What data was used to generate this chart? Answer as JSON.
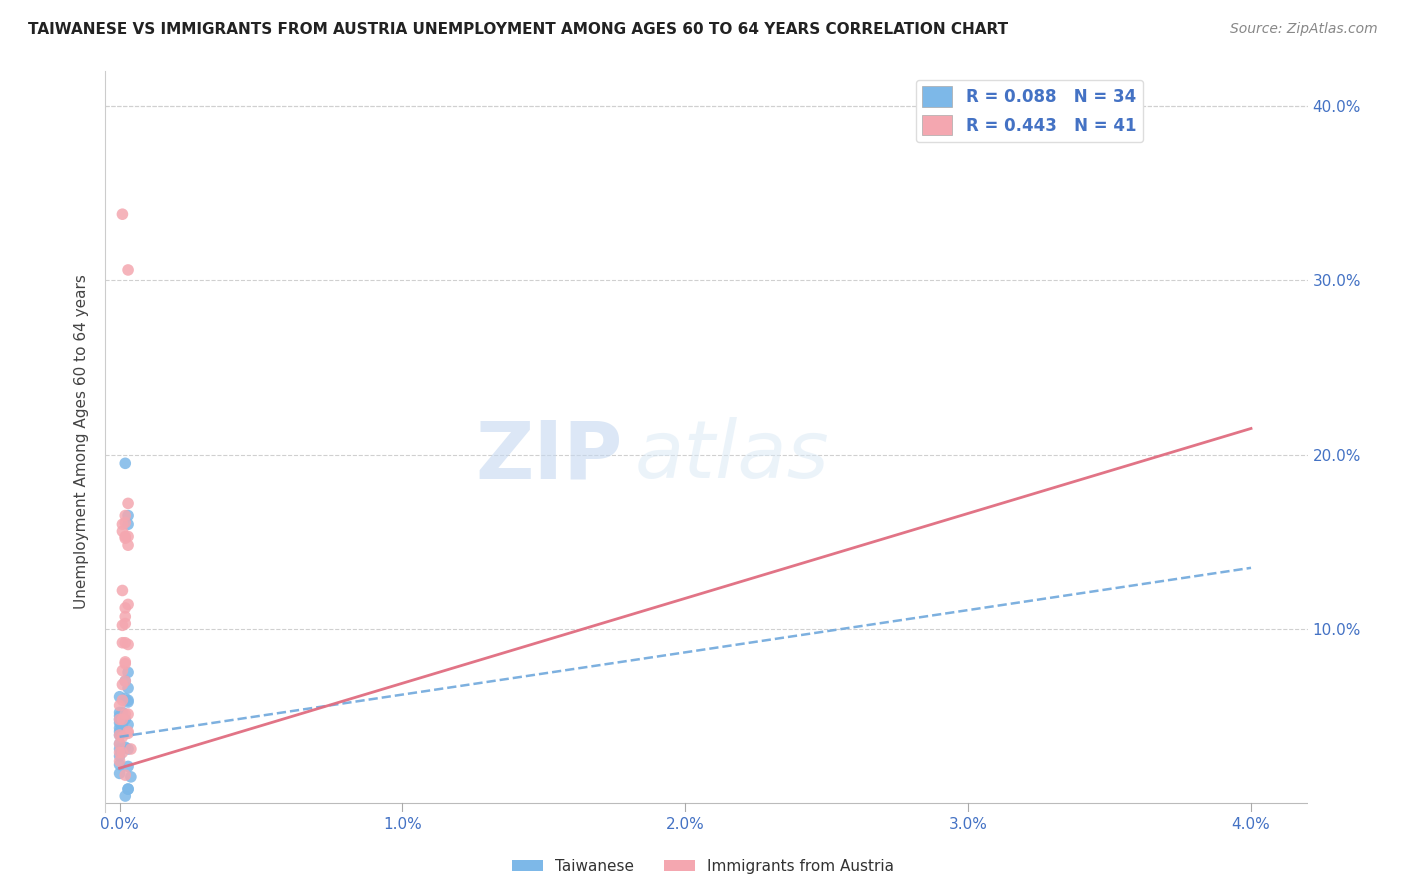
{
  "title": "TAIWANESE VS IMMIGRANTS FROM AUSTRIA UNEMPLOYMENT AMONG AGES 60 TO 64 YEARS CORRELATION CHART",
  "source": "Source: ZipAtlas.com",
  "ylabel_left": "Unemployment Among Ages 60 to 64 years",
  "x_ticks": [
    0.0,
    0.01,
    0.02,
    0.03,
    0.04
  ],
  "x_tick_labels": [
    "0.0%",
    "1.0%",
    "2.0%",
    "3.0%",
    "4.0%"
  ],
  "y_ticks_right": [
    0.1,
    0.2,
    0.3,
    0.4
  ],
  "y_tick_labels_right": [
    "10.0%",
    "20.0%",
    "30.0%",
    "40.0%"
  ],
  "ylim": [
    -0.005,
    0.42
  ],
  "xlim": [
    -0.0005,
    0.042
  ],
  "taiwanese_color": "#6fa8dc",
  "austrian_color": "#e06c75",
  "taiwanese_scatter_color": "#7db8e8",
  "austrian_scatter_color": "#f4a7b0",
  "watermark_zip": "ZIP",
  "watermark_atlas": "atlas",
  "background_color": "#ffffff",
  "grid_color": "#d0d0d0",
  "axis_label_color": "#4472c4",
  "title_color": "#222222",
  "tw_line_color": "#6fa8dc",
  "au_line_color": "#e06c80",
  "taiwanese_scatter": [
    [
      0.0,
      0.043
    ],
    [
      0.0,
      0.052
    ],
    [
      0.0,
      0.046
    ],
    [
      0.0,
      0.039
    ],
    [
      0.0,
      0.034
    ],
    [
      0.0,
      0.031
    ],
    [
      0.0,
      0.027
    ],
    [
      0.0,
      0.061
    ],
    [
      0.0,
      0.022
    ],
    [
      0.0,
      0.017
    ],
    [
      0.0,
      0.05
    ],
    [
      0.0,
      0.048
    ],
    [
      0.0,
      0.041
    ],
    [
      0.0001,
      0.046
    ],
    [
      0.0001,
      0.052
    ],
    [
      0.0001,
      0.045
    ],
    [
      0.0002,
      0.06
    ],
    [
      0.0002,
      0.07
    ],
    [
      0.0002,
      0.032
    ],
    [
      0.0002,
      0.048
    ],
    [
      0.0002,
      0.004
    ],
    [
      0.0002,
      0.195
    ],
    [
      0.0003,
      0.165
    ],
    [
      0.0003,
      0.075
    ],
    [
      0.0003,
      0.059
    ],
    [
      0.0003,
      0.16
    ],
    [
      0.0003,
      0.045
    ],
    [
      0.0003,
      0.008
    ],
    [
      0.0003,
      0.031
    ],
    [
      0.0003,
      0.058
    ],
    [
      0.0003,
      0.021
    ],
    [
      0.0003,
      0.008
    ],
    [
      0.0003,
      0.066
    ],
    [
      0.0004,
      0.015
    ]
  ],
  "austrian_scatter": [
    [
      0.0,
      0.056
    ],
    [
      0.0,
      0.048
    ],
    [
      0.0,
      0.039
    ],
    [
      0.0,
      0.034
    ],
    [
      0.0,
      0.029
    ],
    [
      0.0,
      0.024
    ],
    [
      0.0001,
      0.076
    ],
    [
      0.0001,
      0.068
    ],
    [
      0.0001,
      0.059
    ],
    [
      0.0001,
      0.048
    ],
    [
      0.0001,
      0.038
    ],
    [
      0.0001,
      0.029
    ],
    [
      0.0001,
      0.338
    ],
    [
      0.0001,
      0.16
    ],
    [
      0.0001,
      0.156
    ],
    [
      0.0001,
      0.122
    ],
    [
      0.0001,
      0.102
    ],
    [
      0.0001,
      0.092
    ],
    [
      0.0002,
      0.08
    ],
    [
      0.0002,
      0.07
    ],
    [
      0.0002,
      0.016
    ],
    [
      0.0002,
      0.153
    ],
    [
      0.0002,
      0.112
    ],
    [
      0.0002,
      0.107
    ],
    [
      0.0002,
      0.092
    ],
    [
      0.0002,
      0.161
    ],
    [
      0.0002,
      0.165
    ],
    [
      0.0002,
      0.152
    ],
    [
      0.0002,
      0.103
    ],
    [
      0.0002,
      0.081
    ],
    [
      0.0002,
      0.051
    ],
    [
      0.0003,
      0.153
    ],
    [
      0.0003,
      0.148
    ],
    [
      0.0003,
      0.091
    ],
    [
      0.0003,
      0.041
    ],
    [
      0.0003,
      0.051
    ],
    [
      0.0003,
      0.306
    ],
    [
      0.0003,
      0.04
    ],
    [
      0.0003,
      0.172
    ],
    [
      0.0003,
      0.114
    ],
    [
      0.0004,
      0.031
    ]
  ],
  "tw_line_x": [
    0.0,
    0.04
  ],
  "tw_line_y": [
    0.038,
    0.135
  ],
  "au_line_x": [
    0.0,
    0.04
  ],
  "au_line_y": [
    0.02,
    0.215
  ]
}
